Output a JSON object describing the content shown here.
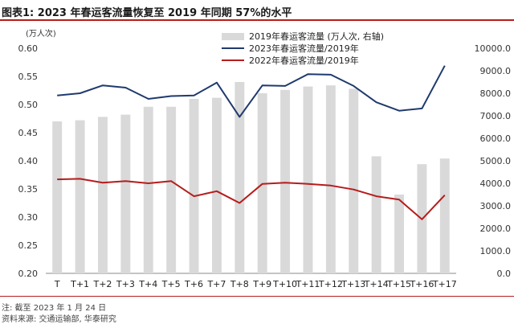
{
  "title": "图表1:  2023 年春运客流量恢复至 2019 年同期 57%的水平",
  "footer": {
    "note": "注: 截至 2023 年 1 月 24 日",
    "source": "资料来源: 交通运输部, 华泰研究"
  },
  "colors": {
    "bar": "#d9d9d9",
    "line2023": "#1f3a6e",
    "line2022": "#b71c1c",
    "accent": "#b71c1c"
  },
  "chart_data": {
    "type": "bar+line",
    "left_axis_unit": "(万人次)",
    "categories": [
      "T",
      "T+1",
      "T+2",
      "T+3",
      "T+4",
      "T+5",
      "T+6",
      "T+7",
      "T+8",
      "T+9",
      "T+10",
      "T+11",
      "T+12",
      "T+13",
      "T+14",
      "T+15",
      "T+16",
      "T+17"
    ],
    "left_ylim": [
      0.2,
      0.6
    ],
    "left_ticks": [
      "0.20",
      "0.25",
      "0.30",
      "0.35",
      "0.40",
      "0.45",
      "0.50",
      "0.55",
      "0.60"
    ],
    "right_ylim": [
      0,
      10000
    ],
    "right_ticks": [
      "0.0",
      "1000.0",
      "2000.0",
      "3000.0",
      "4000.0",
      "5000.0",
      "6000.0",
      "7000.0",
      "8000.0",
      "9000.0",
      "10000.0"
    ],
    "series": [
      {
        "name": "2019年春运客流量 (万人次, 右轴)",
        "type": "bar",
        "axis": "right",
        "values": [
          6750,
          6800,
          6950,
          7050,
          7400,
          7400,
          7750,
          7800,
          8500,
          8000,
          8150,
          8300,
          8350,
          8200,
          5200,
          3500,
          4850,
          5100
        ]
      },
      {
        "name": "2023年春运客流量/2019年",
        "type": "line",
        "axis": "left",
        "values": [
          0.516,
          0.52,
          0.534,
          0.53,
          0.51,
          0.515,
          0.516,
          0.539,
          0.478,
          0.534,
          0.533,
          0.554,
          0.553,
          0.533,
          0.504,
          0.489,
          0.493,
          0.569
        ]
      },
      {
        "name": "2022年春运客流量/2019年",
        "type": "line",
        "axis": "left",
        "values": [
          0.367,
          0.368,
          0.361,
          0.364,
          0.36,
          0.364,
          0.337,
          0.346,
          0.325,
          0.359,
          0.361,
          0.359,
          0.356,
          0.349,
          0.337,
          0.331,
          0.296,
          0.339
        ]
      }
    ],
    "legend_position": "top-center"
  }
}
